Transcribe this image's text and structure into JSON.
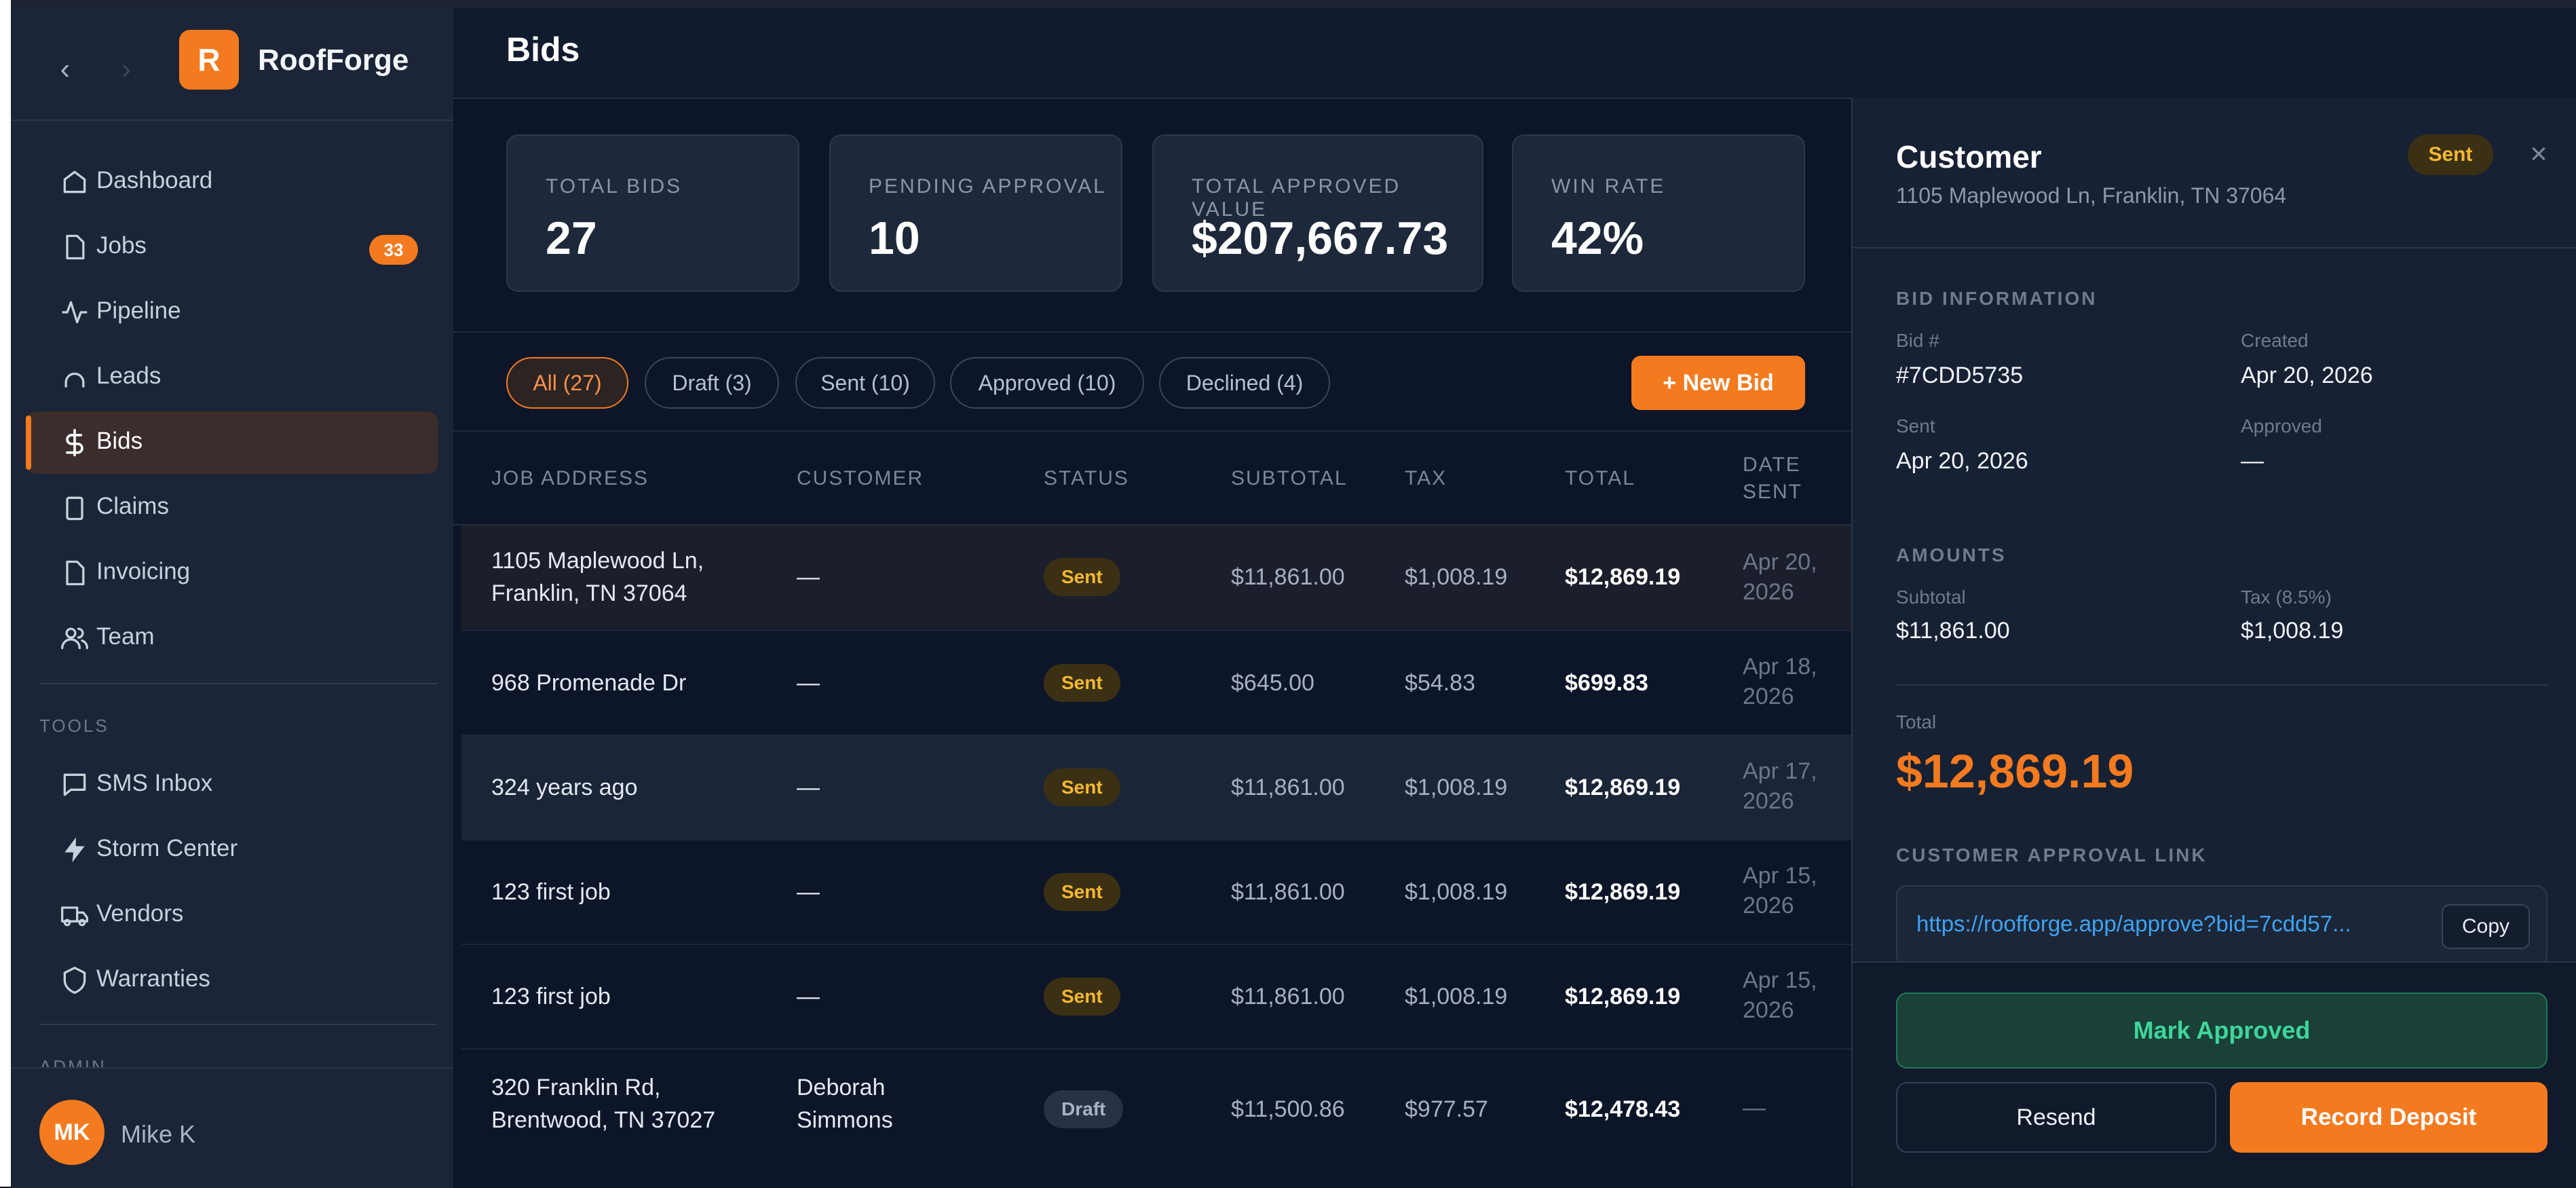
{
  "app": {
    "name": "RoofForge",
    "logo_letter": "R"
  },
  "sidebar": {
    "items": [
      {
        "label": "Dashboard",
        "icon": "home-icon"
      },
      {
        "label": "Jobs",
        "icon": "document-icon",
        "badge": "33"
      },
      {
        "label": "Pipeline",
        "icon": "activity-icon"
      },
      {
        "label": "Leads",
        "icon": "magnet-icon"
      },
      {
        "label": "Bids",
        "icon": "dollar-icon",
        "active": true
      },
      {
        "label": "Claims",
        "icon": "clipboard-icon"
      },
      {
        "label": "Invoicing",
        "icon": "document-icon"
      },
      {
        "label": "Team",
        "icon": "users-icon"
      }
    ],
    "tools_heading": "TOOLS",
    "tools": [
      {
        "label": "SMS Inbox",
        "icon": "message-icon"
      },
      {
        "label": "Storm Center",
        "icon": "lightning-icon"
      },
      {
        "label": "Vendors",
        "icon": "truck-icon"
      },
      {
        "label": "Warranties",
        "icon": "shield-icon"
      }
    ],
    "admin_heading": "ADMIN",
    "user": {
      "initials": "MK",
      "name": "Mike K"
    }
  },
  "header": {
    "title": "Bids"
  },
  "stats": [
    {
      "label": "TOTAL BIDS",
      "value": "27"
    },
    {
      "label": "PENDING APPROVAL",
      "value": "10"
    },
    {
      "label": "TOTAL APPROVED VALUE",
      "value": "$207,667.73"
    },
    {
      "label": "WIN RATE",
      "value": "42%"
    }
  ],
  "filters": [
    {
      "label": "All (27)",
      "active": true
    },
    {
      "label": "Draft (3)"
    },
    {
      "label": "Sent (10)"
    },
    {
      "label": "Approved (10)"
    },
    {
      "label": "Declined (4)"
    }
  ],
  "new_bid_label": "+ New Bid",
  "table": {
    "columns": [
      "JOB ADDRESS",
      "CUSTOMER",
      "STATUS",
      "SUBTOTAL",
      "TAX",
      "TOTAL",
      "DATE",
      "SENT"
    ],
    "rows": [
      {
        "address": [
          "1105 Maplewood Ln,",
          "Franklin, TN 37064"
        ],
        "customer": [
          "—"
        ],
        "status": "Sent",
        "subtotal": "$11,861.00",
        "tax": "$1,008.19",
        "total": "$12,869.19",
        "date": [
          "Apr 20,",
          "2026"
        ]
      },
      {
        "address": [
          "968 Promenade Dr"
        ],
        "customer": [
          "—"
        ],
        "status": "Sent",
        "subtotal": "$645.00",
        "tax": "$54.83",
        "total": "$699.83",
        "date": [
          "Apr 18,",
          "2026"
        ]
      },
      {
        "address": [
          "324 years ago"
        ],
        "customer": [
          "—"
        ],
        "status": "Sent",
        "subtotal": "$11,861.00",
        "tax": "$1,008.19",
        "total": "$12,869.19",
        "date": [
          "Apr 17,",
          "2026"
        ]
      },
      {
        "address": [
          "123 first job"
        ],
        "customer": [
          "—"
        ],
        "status": "Sent",
        "subtotal": "$11,861.00",
        "tax": "$1,008.19",
        "total": "$12,869.19",
        "date": [
          "Apr 15,",
          "2026"
        ]
      },
      {
        "address": [
          "123 first job"
        ],
        "customer": [
          "—"
        ],
        "status": "Sent",
        "subtotal": "$11,861.00",
        "tax": "$1,008.19",
        "total": "$12,869.19",
        "date": [
          "Apr 15,",
          "2026"
        ]
      },
      {
        "address": [
          "320 Franklin Rd,",
          "Brentwood, TN 37027"
        ],
        "customer": [
          "Deborah",
          "Simmons"
        ],
        "status": "Draft",
        "subtotal": "$11,500.86",
        "tax": "$977.57",
        "total": "$12,478.43",
        "date": [
          "—"
        ]
      }
    ]
  },
  "panel": {
    "title": "Customer",
    "address": "1105 Maplewood Ln, Franklin, TN 37064",
    "status": "Sent",
    "close_glyph": "×",
    "bid_info_heading": "BID INFORMATION",
    "bid_number_label": "Bid #",
    "bid_number": "#7CDD5735",
    "created_label": "Created",
    "created": "Apr 20, 2026",
    "sent_label": "Sent",
    "sent": "Apr 20, 2026",
    "approved_label": "Approved",
    "approved": "—",
    "amounts_heading": "AMOUNTS",
    "subtotal_label": "Subtotal",
    "subtotal": "$11,861.00",
    "tax_label": "Tax (8.5%)",
    "tax": "$1,008.19",
    "total_label": "Total",
    "total": "$12,869.19",
    "approval_heading": "CUSTOMER APPROVAL LINK",
    "approval_link": "https://roofforge.app/approve?bid=7cdd57...",
    "copy_label": "Copy",
    "mark_approved_label": "Mark Approved",
    "resend_label": "Resend",
    "record_deposit_label": "Record Deposit"
  },
  "colors": {
    "accent": "#f47a1f",
    "sent": "#f3b832",
    "approve": "#3ed69a",
    "link": "#3fa3f0"
  }
}
